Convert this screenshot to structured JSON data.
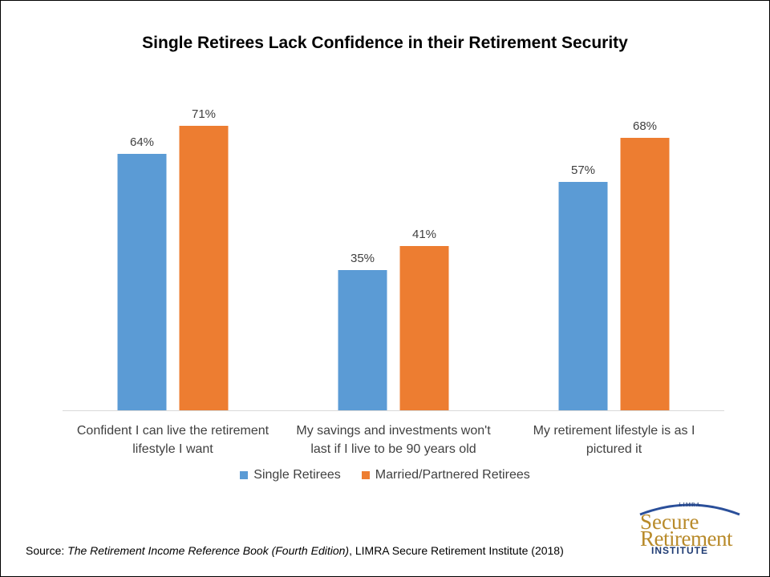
{
  "chart_data": {
    "type": "bar",
    "title": "Single Retirees Lack Confidence in their Retirement Security",
    "categories": [
      [
        "Confident I can live the retirement",
        "lifestyle I want"
      ],
      [
        "My savings and investments won't",
        "last if I live to be 90 years old"
      ],
      [
        "My retirement lifestyle is as I",
        "pictured it"
      ]
    ],
    "series": [
      {
        "name": "Single Retirees",
        "color": "#5b9bd5",
        "values": [
          64,
          35,
          57
        ],
        "labels": [
          "64%",
          "35%",
          "57%"
        ]
      },
      {
        "name": "Married/Partnered Retirees",
        "color": "#ed7d31",
        "values": [
          71,
          41,
          68
        ],
        "labels": [
          "71%",
          "41%",
          "68%"
        ]
      }
    ],
    "ylim": [
      0,
      80
    ],
    "xlabel": "",
    "ylabel": "",
    "legend_position": "bottom"
  },
  "source": {
    "prefix": "Source: ",
    "title": "The Retirement Income Reference Book (Fourth Edition)",
    "suffix": ", LIMRA Secure Retirement Institute (2018)"
  },
  "logo": {
    "top": "LIMRA",
    "word1": "Secure",
    "word2": "Retirement",
    "word3": "INSTITUTE"
  }
}
